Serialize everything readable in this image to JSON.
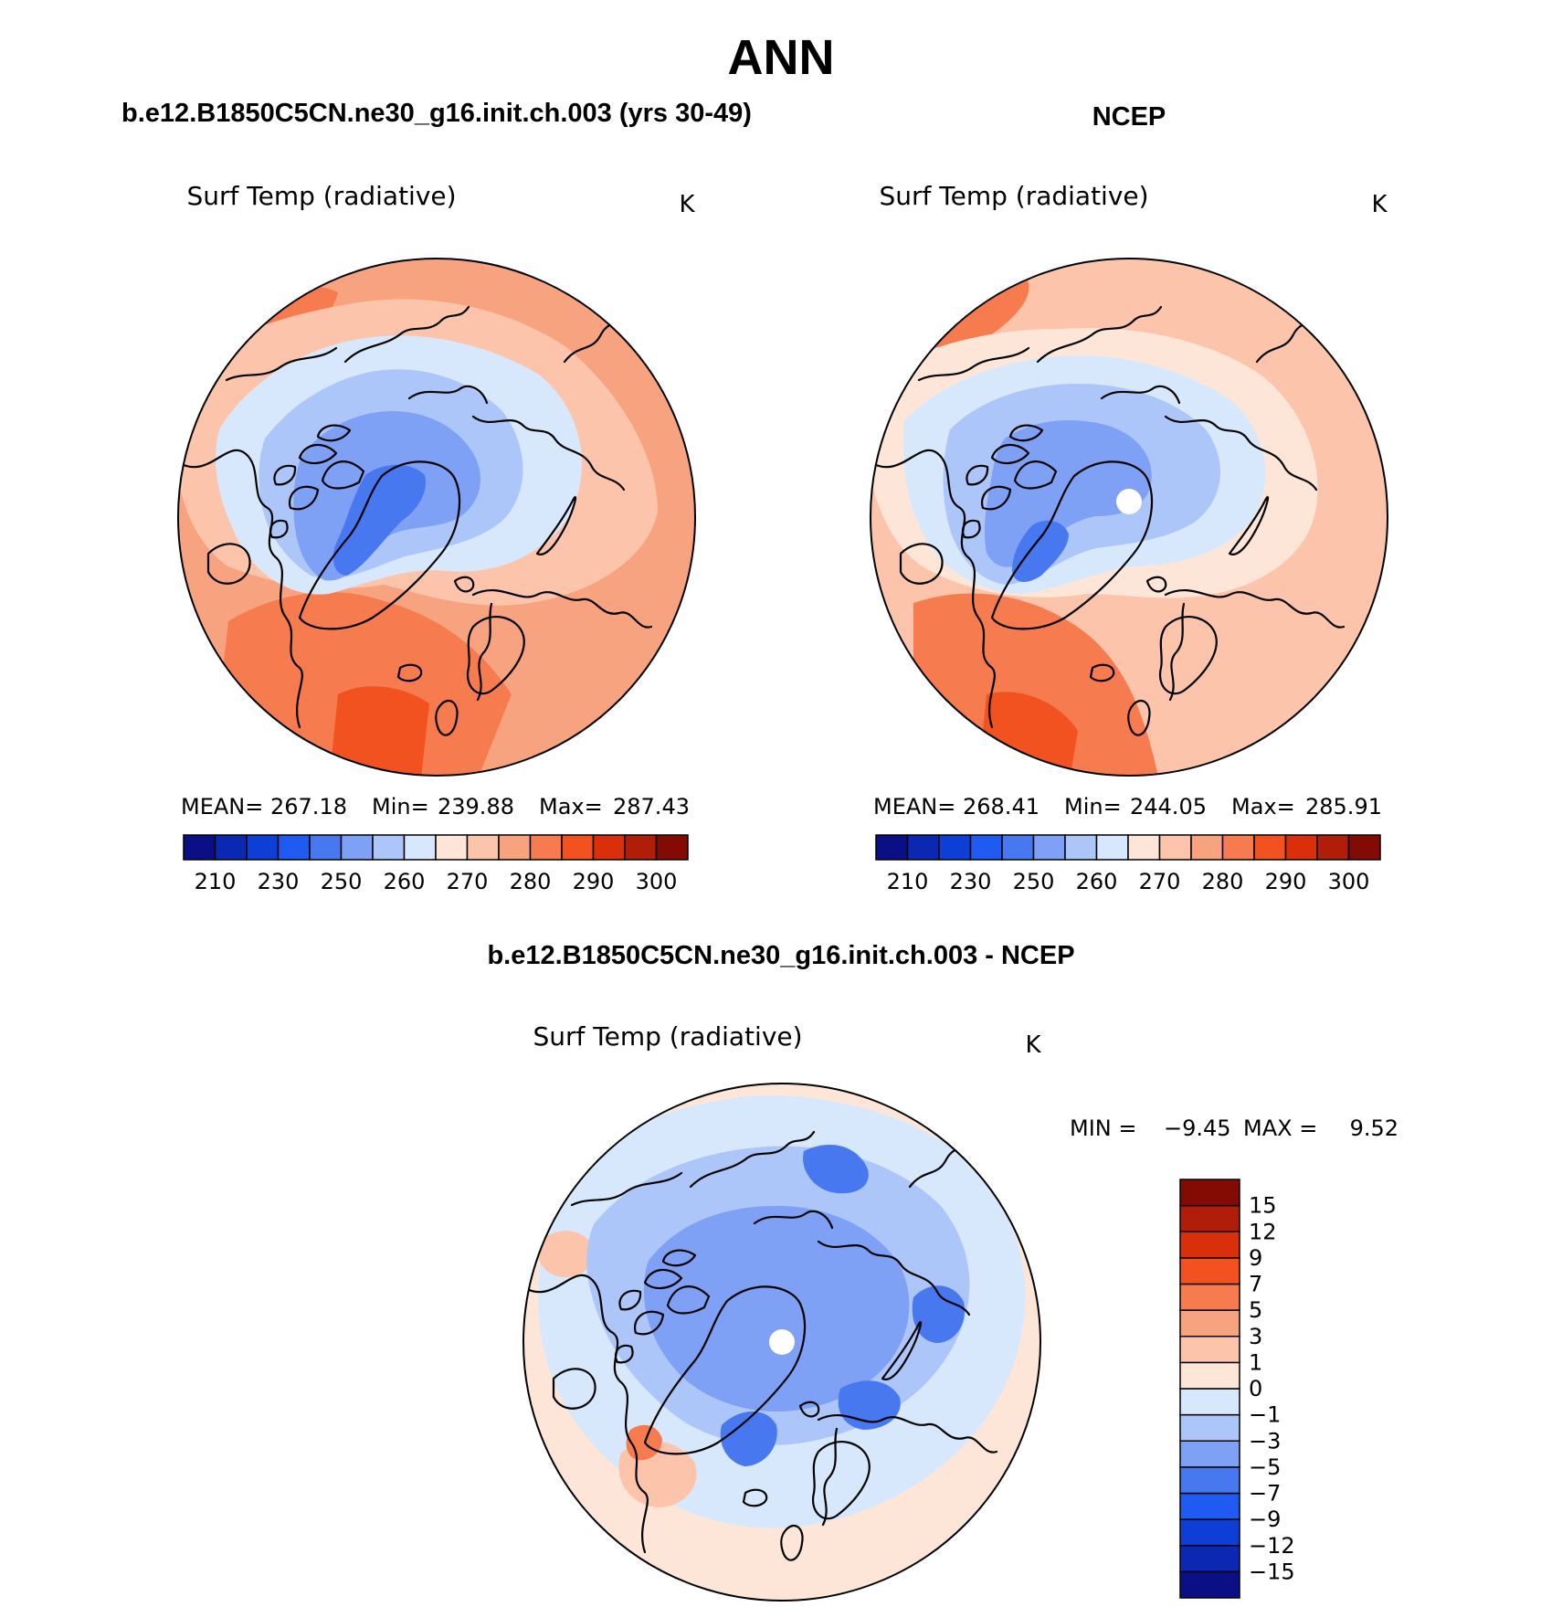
{
  "title": "ANN",
  "panels": [
    {
      "id": "model",
      "heading": "b.e12.B1850C5CN.ne30_g16.init.ch.003 (yrs 30-49)",
      "variable": "Surf Temp (radiative)",
      "units": "K",
      "stats": {
        "mean_label": "MEAN=",
        "mean": "267.18",
        "min_label": "Min=",
        "min": "239.88",
        "max_label": "Max=",
        "max": "287.43"
      },
      "center_value": 242,
      "has_pole_hole": false
    },
    {
      "id": "obs",
      "heading": "NCEP",
      "variable": "Surf Temp (radiative)",
      "units": "K",
      "stats": {
        "mean_label": "MEAN=",
        "mean": "268.41",
        "min_label": "Min=",
        "min": "244.05",
        "max_label": "Max=",
        "max": "285.91"
      },
      "center_value": 252,
      "has_pole_hole": true
    },
    {
      "id": "diff",
      "heading": "b.e12.B1850C5CN.ne30_g16.init.ch.003 - NCEP",
      "variable": "Surf Temp (radiative)",
      "units": "K",
      "stats": {
        "min_label": "MIN =",
        "min": "−9.45",
        "max_label": "MAX =",
        "max": "9.52"
      },
      "center_value": -4,
      "has_pole_hole": true
    }
  ],
  "chart_data": {
    "type": "heatmap",
    "projection": "north polar stereographic",
    "abs_colorbar": {
      "colors": [
        "#0b0f86",
        "#0a28b2",
        "#0d3fd6",
        "#1f5bf0",
        "#4878f0",
        "#7ea0f5",
        "#adc6f9",
        "#d8e8fc",
        "#fde6d8",
        "#fcc5ab",
        "#f8a37f",
        "#f67b4f",
        "#f1521f",
        "#d92f0b",
        "#b01d08",
        "#830b03"
      ],
      "ticks": [
        "210",
        "230",
        "250",
        "260",
        "270",
        "280",
        "290",
        "300"
      ],
      "levels": [
        200,
        210,
        220,
        230,
        240,
        245,
        250,
        255,
        260,
        265,
        270,
        275,
        280,
        285,
        290,
        295,
        300
      ]
    },
    "diff_colorbar": {
      "colors": [
        "#0b0f86",
        "#0a28b2",
        "#0d3fd6",
        "#1f5bf0",
        "#4878f0",
        "#7ea0f5",
        "#adc6f9",
        "#d8e8fc",
        "#fde6d8",
        "#fcc5ab",
        "#f8a37f",
        "#f67b4f",
        "#f1521f",
        "#d92f0b",
        "#b01d08",
        "#830b03"
      ],
      "ticks": [
        "−15",
        "−12",
        "−9",
        "−7",
        "−5",
        "−3",
        "−1",
        "0",
        "1",
        "3",
        "5",
        "7",
        "9",
        "12",
        "15"
      ],
      "levels": [
        -15,
        -12,
        -9,
        -7,
        -5,
        -3,
        -1,
        0,
        1,
        3,
        5,
        7,
        9,
        12,
        15
      ]
    }
  }
}
